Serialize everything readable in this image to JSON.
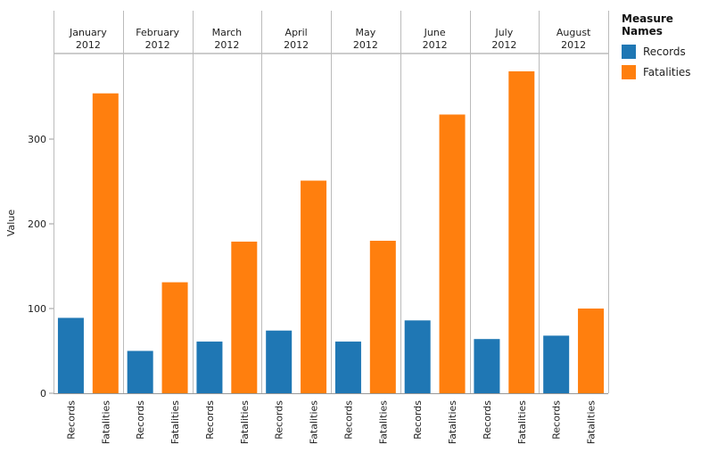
{
  "chart_data": {
    "type": "bar",
    "title": "",
    "ylabel": "Value",
    "ylim": [
      0,
      400
    ],
    "yticks": [
      0,
      100,
      200,
      300
    ],
    "grid": false,
    "categories": [
      {
        "month": "January",
        "year": "2012"
      },
      {
        "month": "February",
        "year": "2012"
      },
      {
        "month": "March",
        "year": "2012"
      },
      {
        "month": "April",
        "year": "2012"
      },
      {
        "month": "May",
        "year": "2012"
      },
      {
        "month": "June",
        "year": "2012"
      },
      {
        "month": "July",
        "year": "2012"
      },
      {
        "month": "August",
        "year": "2012"
      }
    ],
    "series": [
      {
        "name": "Records",
        "color": "#1f77b4",
        "values": [
          89,
          50,
          61,
          74,
          61,
          86,
          64,
          68
        ]
      },
      {
        "name": "Fatalities",
        "color": "#ff7f0e",
        "values": [
          354,
          131,
          179,
          251,
          180,
          329,
          380,
          100
        ]
      }
    ],
    "legend": {
      "title": "Measure Names",
      "position": "top-right"
    }
  }
}
